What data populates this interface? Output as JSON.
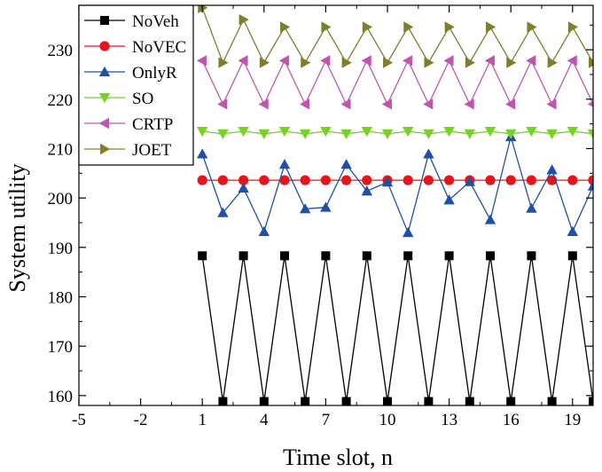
{
  "chart_data": {
    "type": "line",
    "xlabel": "Time slot, n",
    "ylabel": "System utility",
    "xlim": [
      -5,
      20
    ],
    "ylim": [
      158,
      239
    ],
    "xticks": [
      -5,
      -2,
      1,
      4,
      7,
      10,
      13,
      16,
      19
    ],
    "yticks": [
      160,
      170,
      180,
      190,
      200,
      210,
      220,
      230
    ],
    "grid": false,
    "legend_position": "top-left",
    "x": [
      1,
      2,
      3,
      4,
      5,
      6,
      7,
      8,
      9,
      10,
      11,
      12,
      13,
      14,
      15,
      16,
      17,
      18,
      19,
      20
    ],
    "series": [
      {
        "name": "NoVeh",
        "color": "#000000",
        "marker": "square",
        "values": [
          188.3,
          158.8,
          188.3,
          158.8,
          188.3,
          158.8,
          188.3,
          158.8,
          188.3,
          158.8,
          188.3,
          158.8,
          188.3,
          158.8,
          188.3,
          158.8,
          188.3,
          158.8,
          188.3,
          158.8
        ]
      },
      {
        "name": "NoVEC",
        "color": "#e8141a",
        "marker": "circle",
        "values": [
          203.6,
          203.6,
          203.6,
          203.6,
          203.6,
          203.6,
          203.6,
          203.6,
          203.6,
          203.6,
          203.6,
          203.6,
          203.6,
          203.6,
          203.6,
          203.6,
          203.6,
          203.6,
          203.6,
          203.6
        ]
      },
      {
        "name": "OnlyR",
        "color": "#1f4fa8",
        "marker": "triangle-up",
        "values": [
          208.9,
          197.0,
          202.0,
          193.2,
          206.8,
          197.8,
          198.1,
          206.8,
          201.4,
          203.2,
          193.0,
          208.9,
          199.6,
          203.3,
          195.6,
          212.4,
          197.9,
          205.7,
          193.2,
          202.4
        ]
      },
      {
        "name": "SO",
        "color": "#76d323",
        "marker": "triangle-down",
        "values": [
          213.5,
          213.0,
          213.5,
          213.0,
          213.5,
          213.0,
          213.5,
          213.0,
          213.5,
          213.0,
          213.5,
          213.0,
          213.5,
          213.0,
          213.5,
          213.0,
          213.5,
          213.0,
          213.5,
          213.0
        ]
      },
      {
        "name": "CRTP",
        "color": "#c055b0",
        "marker": "triangle-left",
        "values": [
          227.8,
          219.0,
          227.8,
          219.0,
          227.8,
          219.0,
          227.8,
          219.0,
          227.8,
          219.0,
          227.8,
          219.0,
          227.8,
          219.0,
          227.8,
          219.0,
          227.8,
          219.0,
          227.8,
          219.0
        ]
      },
      {
        "name": "JOET",
        "color": "#7f7f2a",
        "marker": "triangle-right",
        "values": [
          238.5,
          227.4,
          236.1,
          227.4,
          234.6,
          227.4,
          234.6,
          227.4,
          234.6,
          227.4,
          234.6,
          227.4,
          234.6,
          227.4,
          234.6,
          227.4,
          234.6,
          227.4,
          234.6,
          227.4
        ]
      }
    ]
  }
}
